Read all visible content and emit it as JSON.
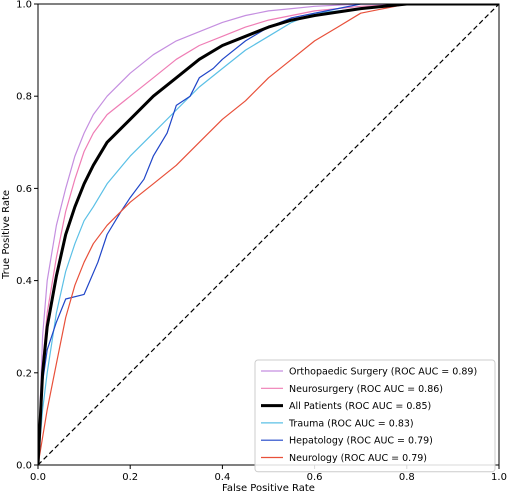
{
  "chart_data": {
    "type": "line",
    "title": "",
    "xlabel": "False Positive Rate",
    "ylabel": "True Positive Rate",
    "xlim": [
      0,
      1
    ],
    "ylim": [
      0,
      1
    ],
    "xticks": [
      "0.0",
      "0.2",
      "0.4",
      "0.6",
      "0.8",
      "1.0"
    ],
    "yticks": [
      "0.0",
      "0.2",
      "0.4",
      "0.6",
      "0.8",
      "1.0"
    ],
    "grid": false,
    "legend_position": "lower-right",
    "reference_line": {
      "x": [
        0,
        1
      ],
      "y": [
        0,
        1
      ],
      "style": "dashed",
      "color": "#000000"
    },
    "series": [
      {
        "name": "Orthopaedic Surgery (ROC AUC = 0.89)",
        "color": "#c58fe0",
        "width": 1.2,
        "x": [
          0,
          0.01,
          0.02,
          0.04,
          0.06,
          0.08,
          0.1,
          0.12,
          0.15,
          0.2,
          0.25,
          0.3,
          0.35,
          0.4,
          0.45,
          0.5,
          0.55,
          0.6,
          0.7,
          0.8,
          0.9,
          1.0
        ],
        "y": [
          0,
          0.28,
          0.4,
          0.52,
          0.6,
          0.67,
          0.72,
          0.76,
          0.8,
          0.85,
          0.89,
          0.92,
          0.94,
          0.96,
          0.975,
          0.985,
          0.99,
          0.995,
          1.0,
          1.0,
          1.0,
          1.0
        ]
      },
      {
        "name": "Neurosurgery (ROC AUC = 0.86)",
        "color": "#ef7db5",
        "width": 1.2,
        "x": [
          0,
          0.01,
          0.02,
          0.04,
          0.06,
          0.08,
          0.1,
          0.12,
          0.15,
          0.2,
          0.25,
          0.3,
          0.35,
          0.4,
          0.45,
          0.5,
          0.55,
          0.6,
          0.7,
          0.8,
          0.9,
          1.0
        ],
        "y": [
          0,
          0.22,
          0.33,
          0.45,
          0.55,
          0.62,
          0.68,
          0.72,
          0.76,
          0.8,
          0.84,
          0.88,
          0.91,
          0.93,
          0.95,
          0.965,
          0.975,
          0.985,
          0.995,
          1.0,
          1.0,
          1.0
        ]
      },
      {
        "name": "All Patients (ROC AUC = 0.85)",
        "color": "#000000",
        "width": 3,
        "x": [
          0,
          0.01,
          0.02,
          0.04,
          0.06,
          0.08,
          0.1,
          0.12,
          0.15,
          0.2,
          0.25,
          0.3,
          0.35,
          0.4,
          0.45,
          0.5,
          0.55,
          0.6,
          0.7,
          0.8,
          0.9,
          1.0
        ],
        "y": [
          0,
          0.2,
          0.3,
          0.41,
          0.5,
          0.56,
          0.61,
          0.65,
          0.7,
          0.75,
          0.8,
          0.84,
          0.88,
          0.91,
          0.93,
          0.95,
          0.965,
          0.975,
          0.99,
          1.0,
          1.0,
          1.0
        ]
      },
      {
        "name": "Trauma (ROC AUC = 0.83)",
        "color": "#5bc0e6",
        "width": 1.2,
        "x": [
          0,
          0.01,
          0.02,
          0.04,
          0.06,
          0.08,
          0.1,
          0.12,
          0.15,
          0.2,
          0.25,
          0.3,
          0.35,
          0.4,
          0.45,
          0.5,
          0.55,
          0.6,
          0.7,
          0.8,
          0.9,
          1.0
        ],
        "y": [
          0,
          0.12,
          0.2,
          0.33,
          0.42,
          0.48,
          0.53,
          0.56,
          0.61,
          0.67,
          0.72,
          0.77,
          0.82,
          0.86,
          0.9,
          0.93,
          0.96,
          0.98,
          0.99,
          1.0,
          1.0,
          1.0
        ]
      },
      {
        "name": "Hepatology (ROC AUC = 0.79)",
        "color": "#1f45c8",
        "width": 1.2,
        "x": [
          0,
          0.01,
          0.02,
          0.04,
          0.06,
          0.1,
          0.13,
          0.15,
          0.18,
          0.2,
          0.23,
          0.25,
          0.28,
          0.3,
          0.33,
          0.35,
          0.38,
          0.4,
          0.45,
          0.5,
          0.55,
          0.6,
          0.65,
          0.7,
          0.75,
          0.8,
          1.0
        ],
        "y": [
          0,
          0.18,
          0.25,
          0.31,
          0.36,
          0.37,
          0.44,
          0.5,
          0.55,
          0.58,
          0.62,
          0.67,
          0.72,
          0.78,
          0.8,
          0.84,
          0.86,
          0.88,
          0.92,
          0.95,
          0.97,
          0.98,
          0.99,
          1.0,
          1.0,
          1.0,
          1.0
        ]
      },
      {
        "name": "Neurology (ROC AUC = 0.79)",
        "color": "#e8503a",
        "width": 1.2,
        "x": [
          0,
          0.01,
          0.02,
          0.04,
          0.06,
          0.08,
          0.1,
          0.12,
          0.15,
          0.2,
          0.25,
          0.3,
          0.35,
          0.4,
          0.45,
          0.5,
          0.55,
          0.6,
          0.65,
          0.7,
          0.8,
          0.9,
          1.0
        ],
        "y": [
          0,
          0.06,
          0.12,
          0.22,
          0.32,
          0.39,
          0.44,
          0.48,
          0.52,
          0.57,
          0.61,
          0.65,
          0.7,
          0.75,
          0.79,
          0.84,
          0.88,
          0.92,
          0.95,
          0.98,
          1.0,
          1.0,
          1.0
        ]
      }
    ]
  }
}
